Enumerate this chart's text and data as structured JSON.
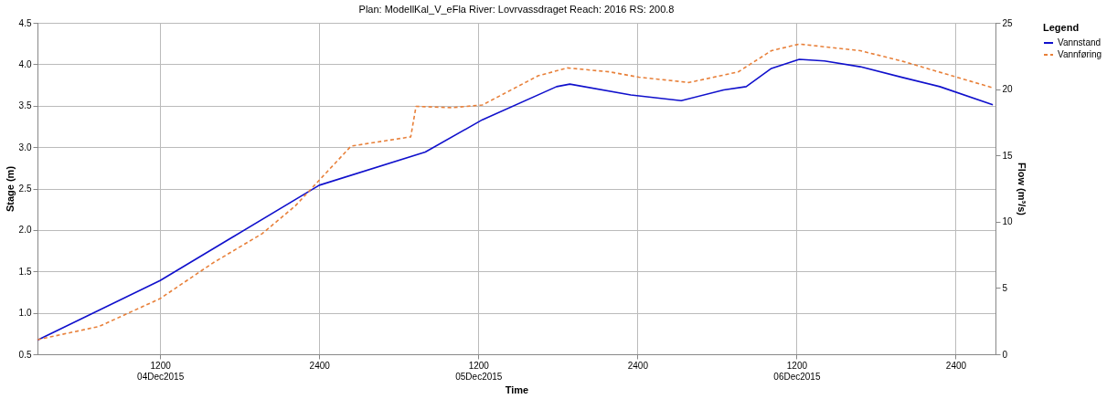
{
  "chart_data": {
    "type": "line",
    "title": "Plan: ModellKal_V_eFla   River: Lovrvassdraget   Reach: 2016   RS: 200.8",
    "xlabel": "Time",
    "ylabel": "Stage (m)",
    "y2label": "Flow (m³/s)",
    "legend_title": "Legend",
    "legend": "right",
    "xlim": [
      "2015-12-04T02:45",
      "2015-12-07T03:00"
    ],
    "xticks": [
      {
        "value": "2015-12-04T12:00",
        "label": "1200\n04Dec2015"
      },
      {
        "value": "2015-12-05T00:00",
        "label": "2400"
      },
      {
        "value": "2015-12-05T12:00",
        "label": "1200\n05Dec2015"
      },
      {
        "value": "2015-12-06T00:00",
        "label": "2400"
      },
      {
        "value": "2015-12-06T12:00",
        "label": "1200\n06Dec2015"
      },
      {
        "value": "2015-12-07T00:00",
        "label": "2400"
      }
    ],
    "ylim": [
      0.5,
      4.5
    ],
    "yticks": [
      0.5,
      {
        "value": 1,
        "label": "1.0"
      },
      1.5,
      {
        "value": 2,
        "label": "2.0"
      },
      2.5,
      {
        "value": 3,
        "label": "3.0"
      },
      3.5,
      {
        "value": 4,
        "label": "4.0"
      },
      4.5
    ],
    "y2lim": [
      0,
      25
    ],
    "y2ticks": [
      0,
      5,
      10,
      15,
      20,
      25
    ],
    "grid": true,
    "series": [
      {
        "name": "Vannstand",
        "color": "#1010cc",
        "line_style": "solid",
        "x": [
          "2015-12-04T02:45",
          "2015-12-04T12:00",
          "2015-12-05T00:00",
          "2015-12-05T08:00",
          "2015-12-05T12:18",
          "2015-12-05T17:54",
          "2015-12-05T18:54",
          "2015-12-05T23:30",
          "2015-12-06T03:18",
          "2015-12-06T06:30",
          "2015-12-06T08:12",
          "2015-12-06T10:06",
          "2015-12-06T12:12",
          "2015-12-06T14:06",
          "2015-12-06T16:48",
          "2015-12-06T20:00",
          "2015-12-06T22:48",
          "2015-12-07T02:48"
        ],
        "values": [
          0.67,
          1.39,
          2.54,
          2.94,
          3.33,
          3.73,
          3.76,
          3.63,
          3.56,
          3.69,
          3.73,
          3.95,
          4.06,
          4.04,
          3.97,
          3.84,
          3.73,
          3.51
        ]
      },
      {
        "name": "Vannføring",
        "color": "#e8803a",
        "line_style": "dashed",
        "axis": "y2",
        "x": [
          "2015-12-04T02:45",
          "2015-12-04T07:24",
          "2015-12-04T12:00",
          "2015-12-04T16:00",
          "2015-12-04T19:42",
          "2015-12-04T22:12",
          "2015-12-05T02:24",
          "2015-12-05T06:54",
          "2015-12-05T07:18",
          "2015-12-05T10:00",
          "2015-12-05T12:18",
          "2015-12-05T16:30",
          "2015-12-05T18:42",
          "2015-12-05T21:54",
          "2015-12-06T00:06",
          "2015-12-06T03:54",
          "2015-12-06T07:36",
          "2015-12-06T10:06",
          "2015-12-06T12:12",
          "2015-12-06T16:48",
          "2015-12-06T20:00",
          "2015-12-07T02:48"
        ],
        "values": [
          1.1,
          2.1,
          4.2,
          6.9,
          9.1,
          11.2,
          15.7,
          16.4,
          18.7,
          18.6,
          18.8,
          21.0,
          21.6,
          21.3,
          20.9,
          20.5,
          21.3,
          22.9,
          23.4,
          22.9,
          22.1,
          20.1
        ]
      }
    ]
  }
}
